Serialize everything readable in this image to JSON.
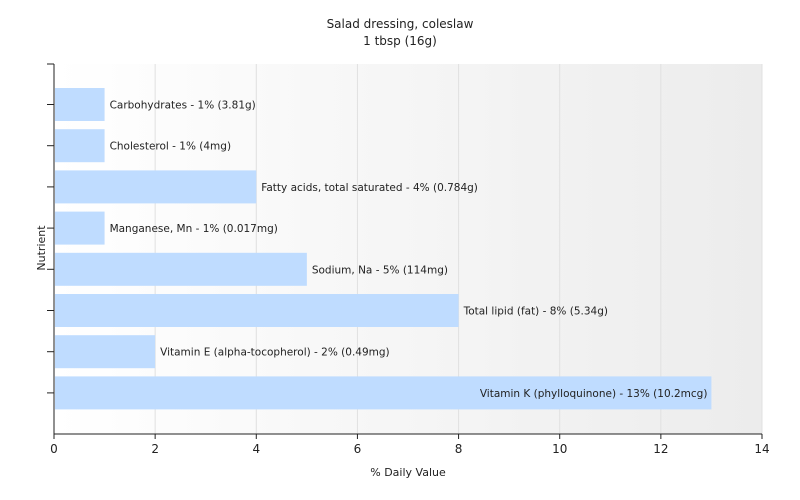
{
  "chart_data": {
    "type": "bar",
    "orientation": "horizontal",
    "title": "Salad dressing, coleslaw",
    "subtitle": "1 tbsp (16g)",
    "xlabel": "% Daily Value",
    "ylabel": "Nutrient",
    "xlim": [
      0,
      14
    ],
    "xticks": [
      0,
      2,
      4,
      6,
      8,
      10,
      12,
      14
    ],
    "grid": true,
    "bar_color": "#bfdcff",
    "categories": [
      "Carbohydrates",
      "Cholesterol",
      "Fatty acids, total saturated",
      "Manganese, Mn",
      "Sodium, Na",
      "Total lipid (fat)",
      "Vitamin E (alpha-tocopherol)",
      "Vitamin K (phylloquinone)"
    ],
    "values": [
      1,
      1,
      4,
      1,
      5,
      8,
      2,
      13
    ],
    "labels": [
      "Carbohydrates - 1% (3.81g)",
      "Cholesterol - 1% (4mg)",
      "Fatty acids, total saturated - 4% (0.784g)",
      "Manganese, Mn - 1% (0.017mg)",
      "Sodium, Na - 5% (114mg)",
      "Total lipid (fat) - 8% (5.34g)",
      "Vitamin E (alpha-tocopherol) - 2% (0.49mg)",
      "Vitamin K (phylloquinone) - 13% (10.2mcg)"
    ]
  }
}
